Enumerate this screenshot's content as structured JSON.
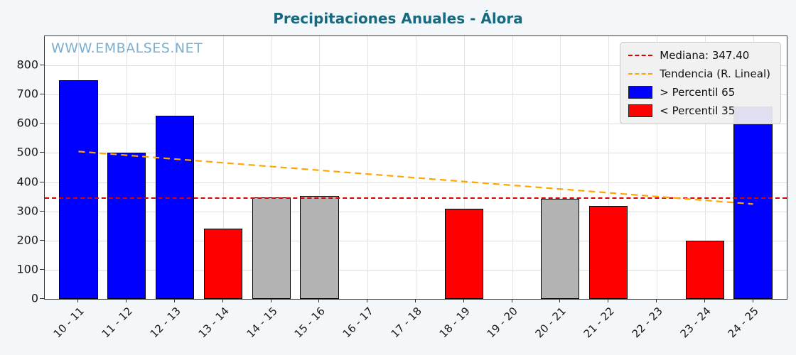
{
  "title": "Precipitaciones Anuales - Álora",
  "watermark": "WWW.EMBALSES.NET",
  "legend": {
    "median_label": "Mediana: 347.40",
    "trend_label": "Tendencia (R. Lineal)",
    "above_label": "> Percentil 65",
    "below_label": "< Percentil 35"
  },
  "colors": {
    "title": "#16697f",
    "watermark": "#7bafcf",
    "above": "#0000ff",
    "below": "#ff0000",
    "mid": "#b3b3b3",
    "median_line": "#dd0000",
    "trend_line": "#ffa500"
  },
  "chart_data": {
    "type": "bar",
    "title": "Precipitaciones Anuales - Álora",
    "categories": [
      "10 - 11",
      "11 - 12",
      "12 - 13",
      "13 - 14",
      "14 - 15",
      "15 - 16",
      "16 - 17",
      "17 - 18",
      "18 - 19",
      "19 - 20",
      "20 - 21",
      "21 - 22",
      "22 - 23",
      "23 - 24",
      "24 - 25"
    ],
    "values": [
      750,
      500,
      627,
      240,
      348,
      353,
      0,
      0,
      308,
      0,
      344,
      318,
      0,
      200,
      660
    ],
    "bar_classes": [
      "above",
      "above",
      "above",
      "below",
      "mid",
      "mid",
      "none",
      "none",
      "below",
      "none",
      "mid",
      "below",
      "none",
      "below",
      "above"
    ],
    "median": 347.4,
    "trend": {
      "start": 505,
      "end": 325
    },
    "ylim": [
      0,
      900
    ],
    "yticks": [
      0,
      100,
      200,
      300,
      400,
      500,
      600,
      700,
      800
    ],
    "xlabel": "",
    "ylabel": "",
    "grid": true,
    "legend_position": "upper right"
  }
}
